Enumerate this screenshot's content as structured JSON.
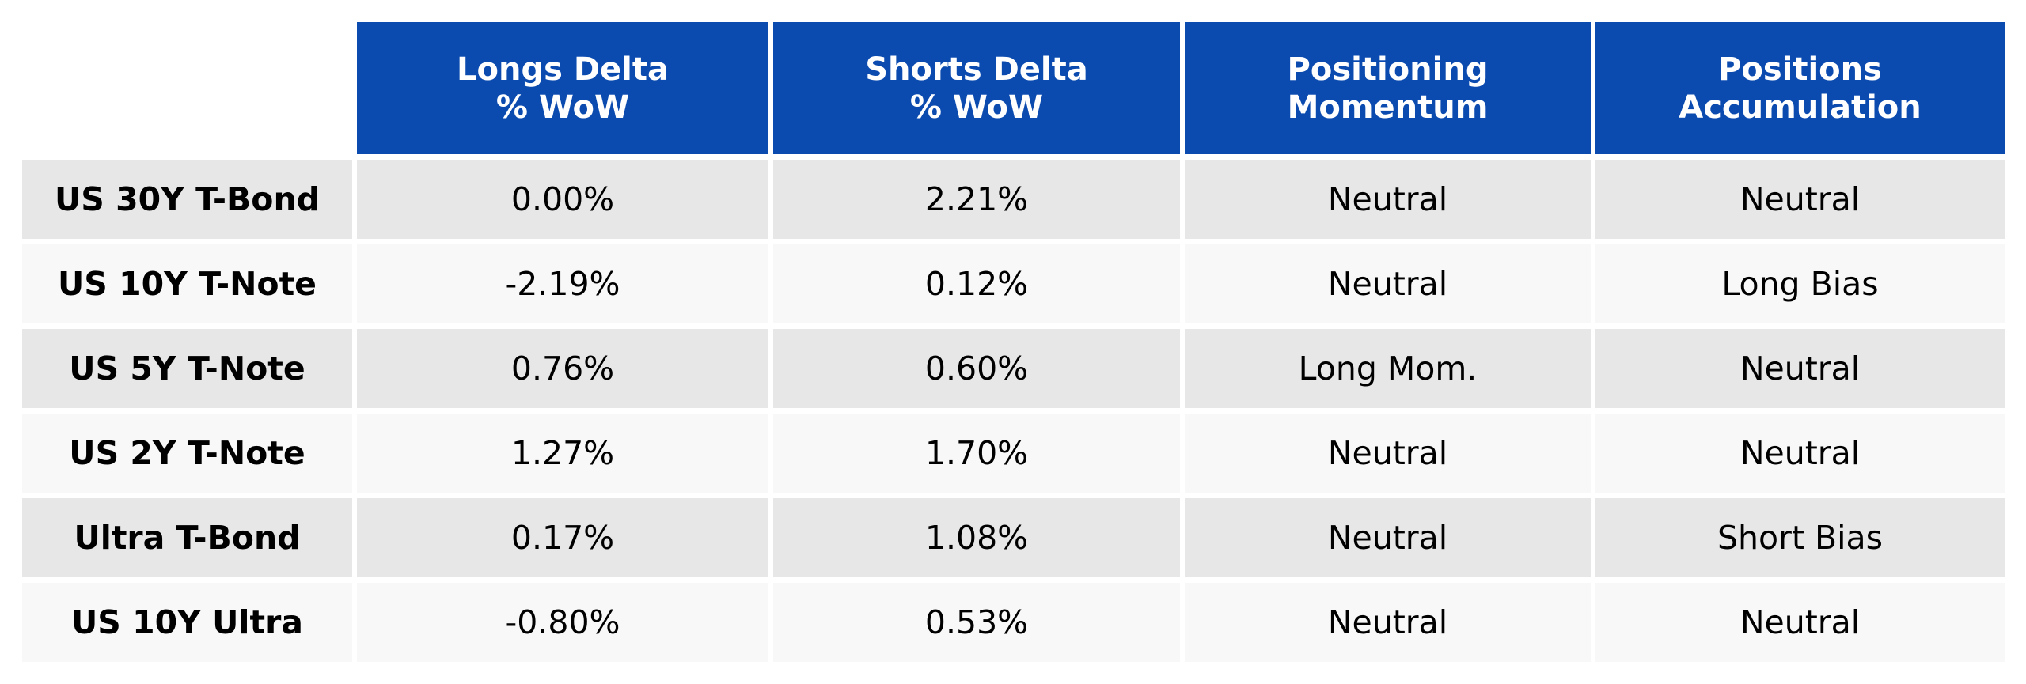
{
  "colors": {
    "header_bg": "#0B4AAF",
    "header_text": "#FFFFFF",
    "row_band_dark": "#E7E7E7",
    "row_band_light": "#F8F8F8",
    "page_bg": "#FFFFFF",
    "body_text": "#000000"
  },
  "table": {
    "corner_label": "",
    "headers": [
      {
        "line1": "Longs Delta",
        "line2": "% WoW"
      },
      {
        "line1": "Shorts Delta",
        "line2": "% WoW"
      },
      {
        "line1": "Positioning",
        "line2": "Momentum"
      },
      {
        "line1": "Positions",
        "line2": "Accumulation"
      }
    ],
    "rows": [
      {
        "label": "US 30Y T-Bond",
        "values": [
          "0.00%",
          "2.21%",
          "Neutral",
          "Neutral"
        ]
      },
      {
        "label": "US 10Y T-Note",
        "values": [
          "-2.19%",
          "0.12%",
          "Neutral",
          "Long Bias"
        ]
      },
      {
        "label": "US 5Y T-Note",
        "values": [
          "0.76%",
          "0.60%",
          "Long Mom.",
          "Neutral"
        ]
      },
      {
        "label": "US 2Y T-Note",
        "values": [
          "1.27%",
          "1.70%",
          "Neutral",
          "Neutral"
        ]
      },
      {
        "label": "Ultra T-Bond",
        "values": [
          "0.17%",
          "1.08%",
          "Neutral",
          "Short Bias"
        ]
      },
      {
        "label": "US 10Y Ultra",
        "values": [
          "-0.80%",
          "0.53%",
          "Neutral",
          "Neutral"
        ]
      }
    ]
  },
  "chart_data": {
    "type": "table",
    "title": "",
    "categories": [
      "US 30Y T-Bond",
      "US 10Y T-Note",
      "US 5Y T-Note",
      "US 2Y T-Note",
      "Ultra T-Bond",
      "US 10Y Ultra"
    ],
    "columns": [
      "Longs Delta % WoW",
      "Shorts Delta % WoW",
      "Positioning Momentum",
      "Positions Accumulation"
    ],
    "series": [
      {
        "name": "Longs Delta % WoW",
        "unit": "%",
        "values": [
          0.0,
          -2.19,
          0.76,
          1.27,
          0.17,
          -0.8
        ]
      },
      {
        "name": "Shorts Delta % WoW",
        "unit": "%",
        "values": [
          2.21,
          0.12,
          0.6,
          1.7,
          1.08,
          0.53
        ]
      },
      {
        "name": "Positioning Momentum",
        "values": [
          "Neutral",
          "Neutral",
          "Long Mom.",
          "Neutral",
          "Neutral",
          "Neutral"
        ]
      },
      {
        "name": "Positions Accumulation",
        "values": [
          "Neutral",
          "Long Bias",
          "Neutral",
          "Neutral",
          "Short Bias",
          "Neutral"
        ]
      }
    ],
    "layout": {
      "header_position": "top",
      "row_banding": true,
      "grid": "white-gutters"
    }
  }
}
